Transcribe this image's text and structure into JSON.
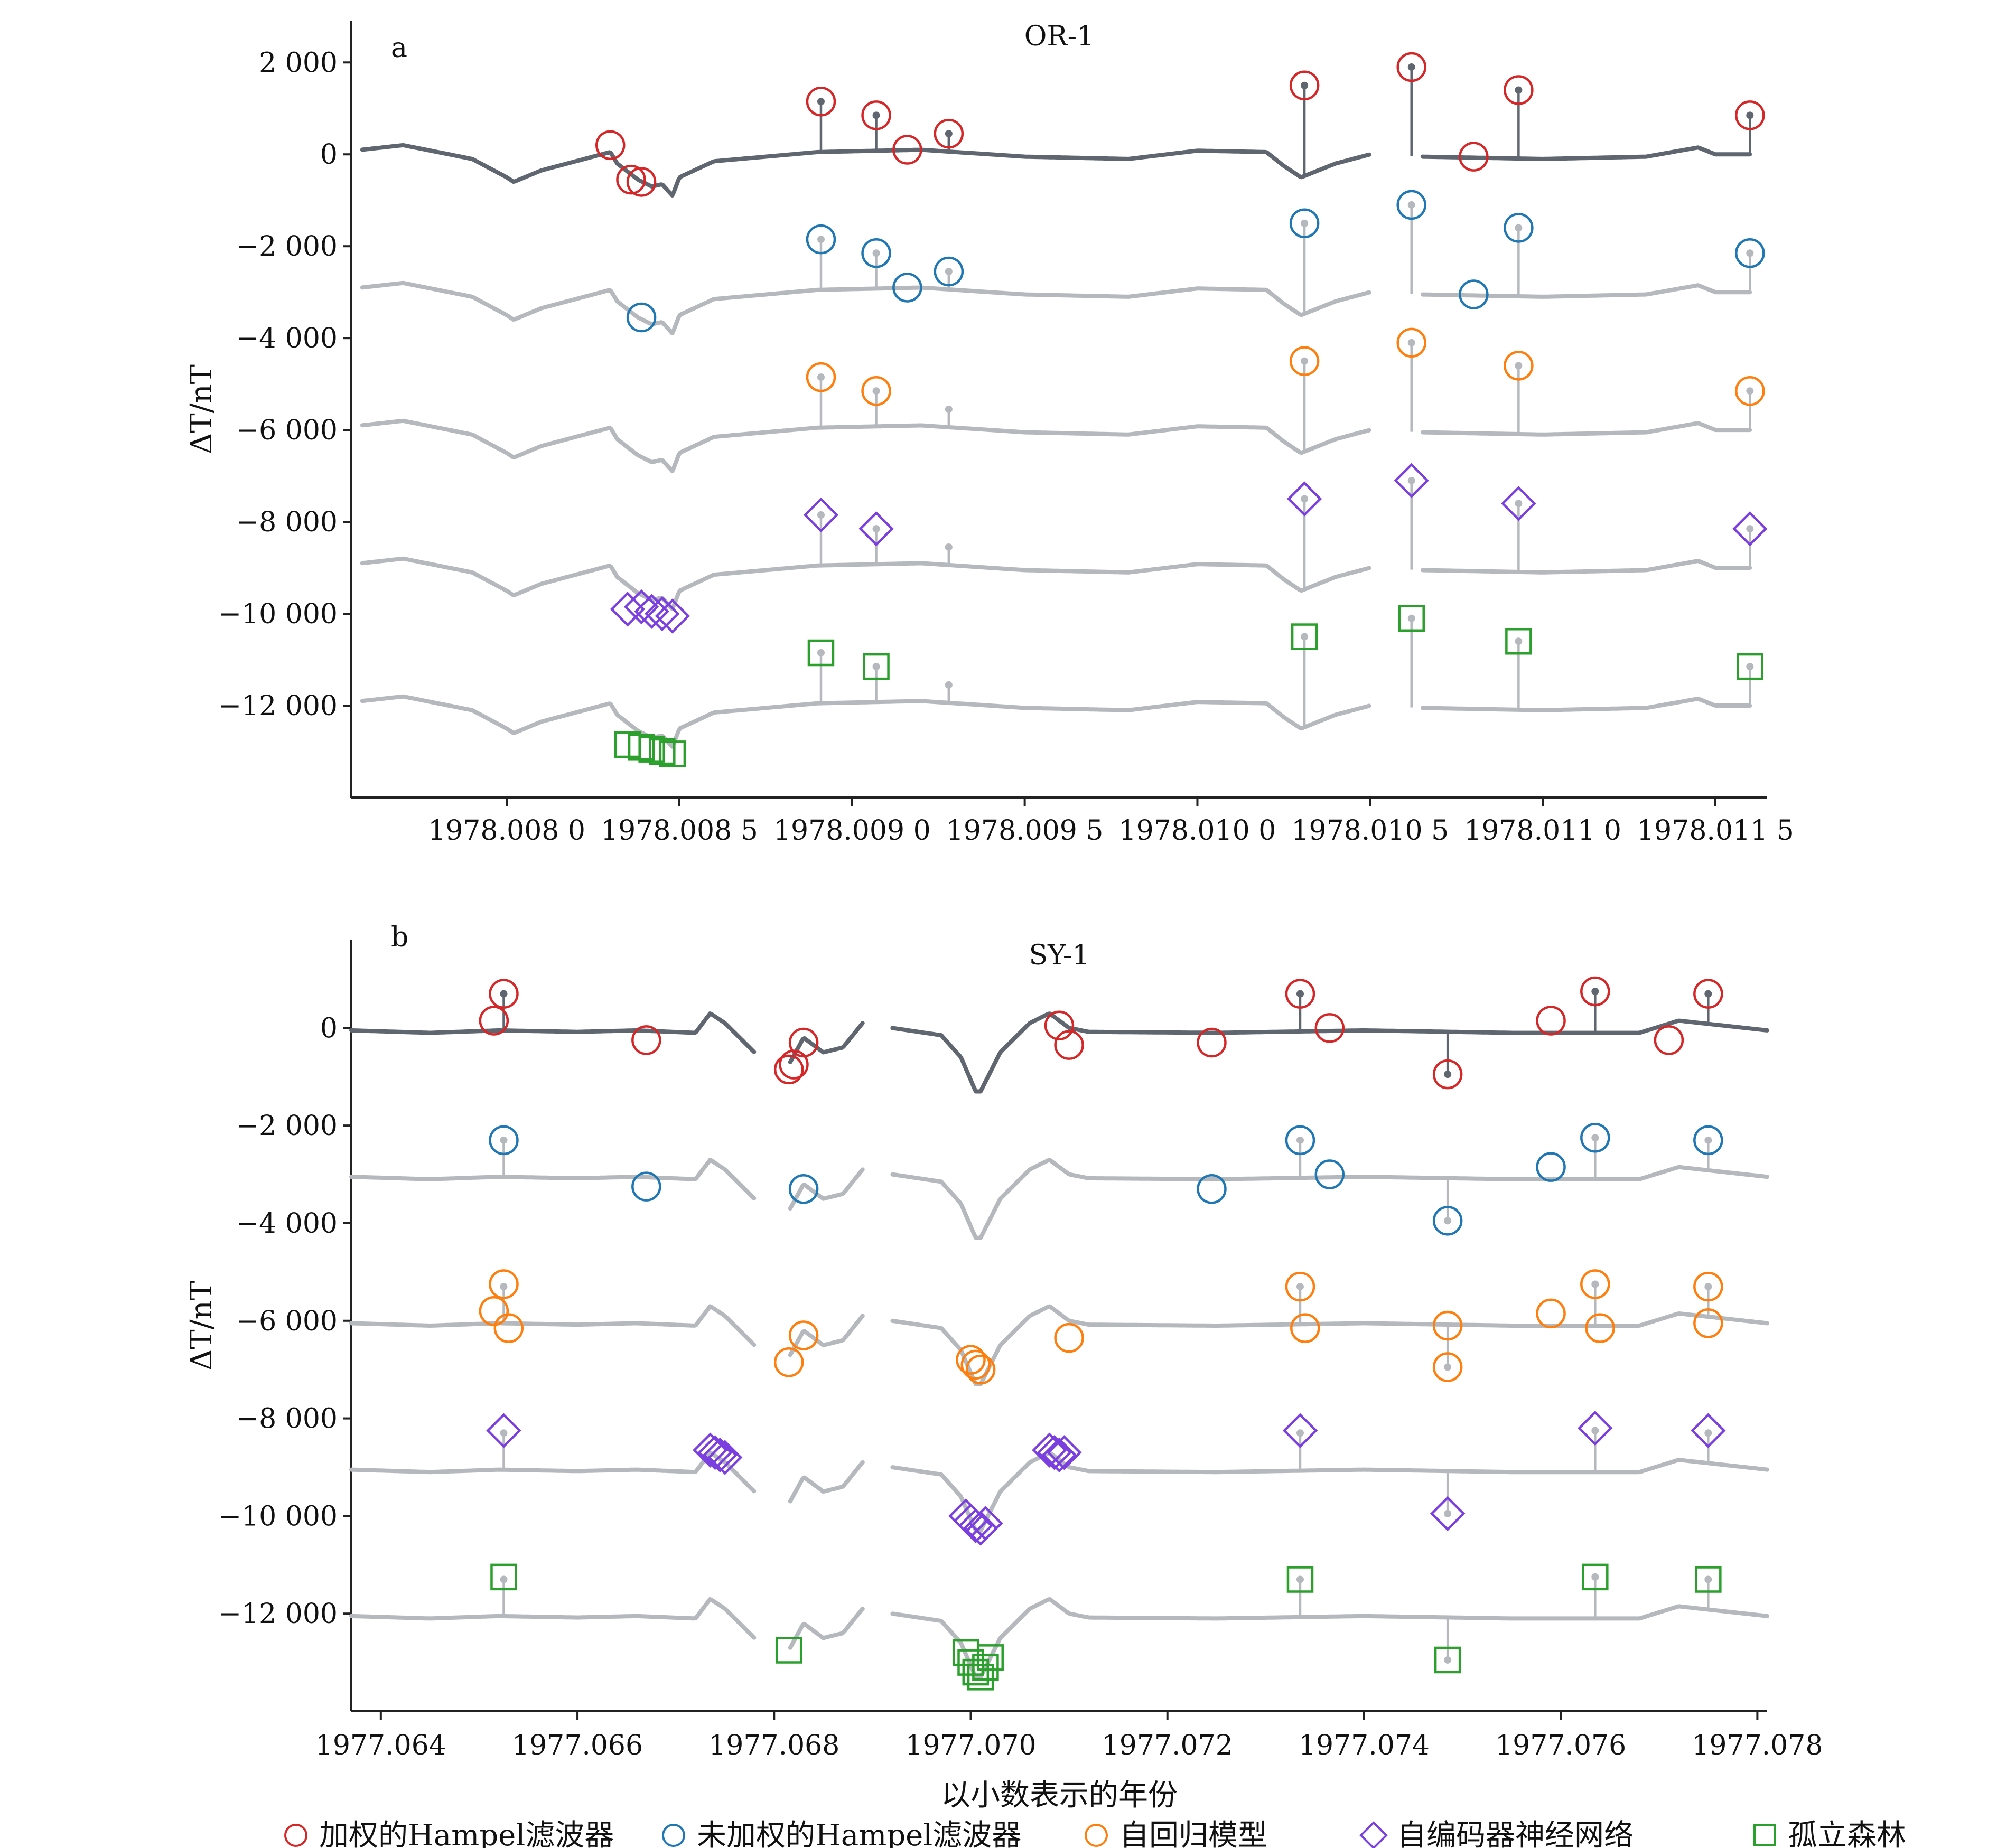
{
  "legend": [
    {
      "label": "加权的Hampel滤波器",
      "color": "#d62728",
      "marker": "circle"
    },
    {
      "label": "未加权的Hampel滤波器",
      "color": "#1f77b4",
      "marker": "circle"
    },
    {
      "label": "自回归模型",
      "color": "#ff7f0e",
      "marker": "circle"
    },
    {
      "label": "自编码器神经网络",
      "color": "#7b3fe0",
      "marker": "diamond"
    },
    {
      "label": "孤立森林",
      "color": "#2ca02c",
      "marker": "square"
    }
  ],
  "colors": {
    "raw_series": "#5f6670",
    "offset_series": "#b5b8bd"
  },
  "chart_data": [
    {
      "type": "line",
      "panel": "a",
      "title": "OR-1",
      "xlabel": "",
      "ylabel": "ΔT/nT",
      "xlim": [
        1978.00755,
        1978.01165
      ],
      "ylim": [
        -14000,
        2900
      ],
      "yticks": [
        2000,
        0,
        -2000,
        -4000,
        -6000,
        -8000,
        -10000,
        -12000
      ],
      "ytick_labels": [
        "2 000",
        "0",
        "−2 000",
        "−4 000",
        "−6 000",
        "−8 000",
        "−10 000",
        "−12 000"
      ],
      "xticks": [
        1978.008,
        1978.0085,
        1978.009,
        1978.0095,
        1978.01,
        1978.0105,
        1978.011,
        1978.0115
      ],
      "xtick_labels": [
        "1978.008 0",
        "1978.008 5",
        "1978.009 0",
        "1978.009 5",
        "1978.010 0",
        "1978.010 5",
        "1978.011 0",
        "1978.011 5"
      ],
      "gaps": [
        [
          1978.0105,
          1978.01065
        ]
      ],
      "series_offsets": [
        0,
        -3000,
        -6000,
        -9000,
        -12000
      ],
      "baseline": {
        "x": [
          1978.00758,
          1978.0077,
          1978.0079,
          1978.008,
          1978.00802,
          1978.0081,
          1978.0083,
          1978.00832,
          1978.00838,
          1978.00842,
          1978.00845,
          1978.00848,
          1978.0085,
          1978.0086,
          1978.0089,
          1978.0092,
          1978.0095,
          1978.0098,
          1978.01,
          1978.0102,
          1978.01025,
          1978.0103,
          1978.0104,
          1978.0105,
          1978.01065,
          1978.011,
          1978.0113,
          1978.01145,
          1978.0115,
          1978.0116
        ],
        "y": [
          100,
          200,
          -100,
          -500,
          -600,
          -350,
          50,
          -200,
          -550,
          -700,
          -650,
          -900,
          -500,
          -150,
          50,
          100,
          -50,
          -100,
          80,
          50,
          -250,
          -500,
          -200,
          0,
          -50,
          -100,
          -50,
          150,
          0,
          0
        ]
      },
      "spikes": [
        {
          "x": 1978.00891,
          "y": 1150
        },
        {
          "x": 1978.00907,
          "y": 850
        },
        {
          "x": 1978.00928,
          "y": 450
        },
        {
          "x": 1978.01031,
          "y": 1500
        },
        {
          "x": 1978.01062,
          "y": 1900
        },
        {
          "x": 1978.01093,
          "y": 1400
        },
        {
          "x": 1978.0116,
          "y": 850
        }
      ],
      "detections": [
        {
          "method": 0,
          "x": [
            1978.0083,
            1978.00836,
            1978.00839,
            1978.00916,
            1978.00891,
            1978.00907,
            1978.00928,
            1978.01031,
            1978.01062,
            1978.0108,
            1978.01093,
            1978.0116
          ],
          "y": [
            200,
            -550,
            -600,
            100,
            1150,
            850,
            450,
            1500,
            1900,
            -50,
            1400,
            850
          ]
        },
        {
          "method": 1,
          "x": [
            1978.00839,
            1978.00891,
            1978.00907,
            1978.00916,
            1978.00928,
            1978.01031,
            1978.01062,
            1978.0108,
            1978.01093,
            1978.0116
          ],
          "y": [
            -550,
            1150,
            850,
            100,
            450,
            1500,
            1900,
            -50,
            1400,
            850
          ]
        },
        {
          "method": 2,
          "x": [
            1978.00891,
            1978.00907,
            1978.01031,
            1978.01062,
            1978.01093,
            1978.0116
          ],
          "y": [
            1150,
            850,
            1500,
            1900,
            1400,
            850
          ]
        },
        {
          "method": 3,
          "x": [
            1978.00835,
            1978.00839,
            1978.00842,
            1978.00845,
            1978.00848,
            1978.00891,
            1978.00907,
            1978.01031,
            1978.01062,
            1978.01093,
            1978.0116
          ],
          "y": [
            -900,
            -850,
            -950,
            -1000,
            -1050,
            1150,
            850,
            1500,
            1900,
            1400,
            850
          ]
        },
        {
          "method": 4,
          "x": [
            1978.00835,
            1978.00839,
            1978.00842,
            1978.00845,
            1978.00848,
            1978.00891,
            1978.00907,
            1978.01031,
            1978.01062,
            1978.01093,
            1978.0116
          ],
          "y": [
            -850,
            -900,
            -950,
            -1000,
            -1050,
            1150,
            850,
            1500,
            1900,
            1400,
            850
          ]
        }
      ]
    },
    {
      "type": "line",
      "panel": "b",
      "title": "SY-1",
      "xlabel": "以小数表示的年份",
      "ylabel": "ΔT/nT",
      "xlim": [
        1977.0637,
        1977.0781
      ],
      "ylim": [
        -14000,
        1800
      ],
      "yticks": [
        0,
        -2000,
        -4000,
        -6000,
        -8000,
        -10000,
        -12000
      ],
      "ytick_labels": [
        "0",
        "−2 000",
        "−4 000",
        "−6 000",
        "−8 000",
        "−10 000",
        "−12 000"
      ],
      "xticks": [
        1977.064,
        1977.066,
        1977.068,
        1977.07,
        1977.072,
        1977.074,
        1977.076,
        1977.078
      ],
      "xtick_labels": [
        "1977.064",
        "1977.066",
        "1977.068",
        "1977.070",
        "1977.072",
        "1977.074",
        "1977.076",
        "1977.078"
      ],
      "gaps": [
        [
          1977.0678,
          1977.06815
        ],
        [
          1977.0689,
          1977.0692
        ]
      ],
      "series_offsets": [
        0,
        -3000,
        -6000,
        -9000,
        -12000
      ],
      "baseline": {
        "x": [
          1977.0637,
          1977.0645,
          1977.0652,
          1977.066,
          1977.0666,
          1977.0672,
          1977.06735,
          1977.0675,
          1977.0678,
          1977.06815,
          1977.0683,
          1977.0685,
          1977.0687,
          1977.0689,
          1977.0692,
          1977.0697,
          1977.0699,
          1977.07005,
          1977.0701,
          1977.0703,
          1977.0706,
          1977.0708,
          1977.071,
          1977.0712,
          1977.0725,
          1977.074,
          1977.0755,
          1977.0768,
          1977.0772,
          1977.0781
        ],
        "y": [
          -50,
          -100,
          -50,
          -80,
          -50,
          -100,
          300,
          100,
          -500,
          -750,
          -200,
          -500,
          -400,
          100,
          0,
          -150,
          -600,
          -1300,
          -1300,
          -500,
          100,
          300,
          0,
          -80,
          -100,
          -50,
          -100,
          -100,
          150,
          -50
        ]
      },
      "spikes": [
        {
          "x": 1977.06525,
          "y": 700
        },
        {
          "x": 1977.07335,
          "y": 700
        },
        {
          "x": 1977.07635,
          "y": 750
        },
        {
          "x": 1977.0775,
          "y": 700
        },
        {
          "x": 1977.07485,
          "y": -950
        }
      ],
      "detections": [
        {
          "method": 0,
          "x": [
            1977.06515,
            1977.06525,
            1977.0667,
            1977.06815,
            1977.0682,
            1977.0683,
            1977.0709,
            1977.071,
            1977.07245,
            1977.07335,
            1977.07365,
            1977.07485,
            1977.0759,
            1977.07635,
            1977.0771,
            1977.0775
          ],
          "y": [
            150,
            700,
            -250,
            -850,
            -750,
            -300,
            50,
            -350,
            -300,
            700,
            0,
            -950,
            150,
            750,
            -250,
            700
          ]
        },
        {
          "method": 1,
          "x": [
            1977.06525,
            1977.0667,
            1977.0683,
            1977.07245,
            1977.07335,
            1977.07365,
            1977.07485,
            1977.0759,
            1977.07635,
            1977.0775
          ],
          "y": [
            700,
            -250,
            -300,
            -300,
            700,
            0,
            -950,
            150,
            750,
            700
          ]
        },
        {
          "method": 2,
          "x": [
            1977.06515,
            1977.06525,
            1977.0653,
            1977.06815,
            1977.0683,
            1977.07,
            1977.07005,
            1977.0701,
            1977.071,
            1977.07335,
            1977.0734,
            1977.07485,
            1977.07485,
            1977.0759,
            1977.07635,
            1977.0764,
            1977.0775,
            1977.0775
          ],
          "y": [
            200,
            750,
            -150,
            -850,
            -300,
            -800,
            -900,
            -1000,
            -350,
            700,
            -150,
            -100,
            -950,
            150,
            750,
            -150,
            700,
            -50
          ]
        },
        {
          "method": 3,
          "x": [
            1977.06525,
            1977.06735,
            1977.0674,
            1977.06745,
            1977.0675,
            1977.06995,
            1977.07,
            1977.07005,
            1977.0701,
            1977.07015,
            1977.0708,
            1977.07085,
            1977.0709,
            1977.07095,
            1977.07335,
            1977.07485,
            1977.07635,
            1977.0775
          ],
          "y": [
            750,
            350,
            300,
            250,
            200,
            -1000,
            -1100,
            -1200,
            -1250,
            -1150,
            350,
            300,
            250,
            300,
            750,
            -950,
            800,
            750
          ]
        },
        {
          "method": 4,
          "x": [
            1977.06525,
            1977.06815,
            1977.06995,
            1977.07,
            1977.07005,
            1977.0701,
            1977.07015,
            1977.0702,
            1977.07335,
            1977.07485,
            1977.07635,
            1977.0775
          ],
          "y": [
            750,
            -750,
            -800,
            -1000,
            -1200,
            -1300,
            -1100,
            -900,
            700,
            -950,
            750,
            700
          ]
        }
      ]
    }
  ]
}
